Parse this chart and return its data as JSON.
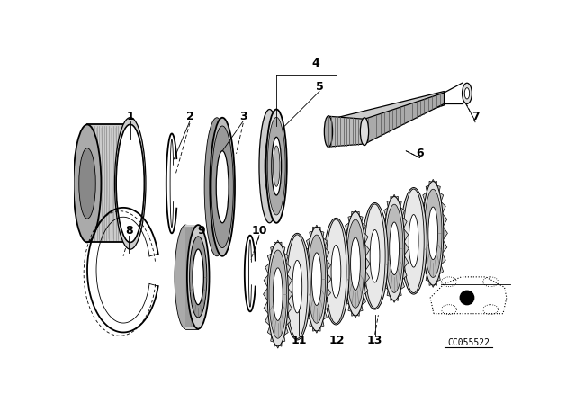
{
  "background_color": "#ffffff",
  "line_color": "#000000",
  "part_labels": [
    "1",
    "2",
    "3",
    "4",
    "5",
    "6",
    "7",
    "8",
    "9",
    "10",
    "11",
    "12",
    "13"
  ],
  "diagram_code_text": "CC055522",
  "fig_width": 6.4,
  "fig_height": 4.48,
  "dpi": 100
}
